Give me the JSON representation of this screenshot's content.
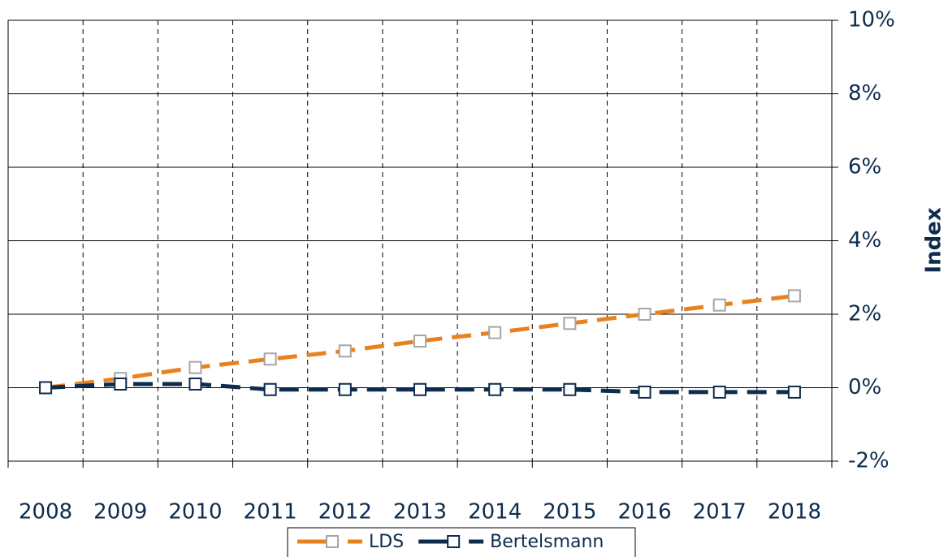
{
  "chart_data": {
    "type": "line",
    "y_label": "Index",
    "categories": [
      "2008",
      "2009",
      "2010",
      "2011",
      "2012",
      "2013",
      "2014",
      "2015",
      "2016",
      "2017",
      "2018"
    ],
    "series": [
      {
        "name": "LDS",
        "color": "#e8821e",
        "marker_color": "#a6a6a6",
        "values": [
          0,
          0.25,
          0.55,
          0.78,
          1.0,
          1.27,
          1.5,
          1.75,
          2.0,
          2.25,
          2.5
        ]
      },
      {
        "name": "Bertelsmann",
        "color": "#0d2c4e",
        "marker_color": "#0d2c4e",
        "values": [
          0,
          0.1,
          0.1,
          -0.05,
          -0.05,
          -0.05,
          -0.05,
          -0.05,
          -0.12,
          -0.12,
          -0.12
        ]
      }
    ],
    "ylim": [
      -2,
      10
    ],
    "yticks": [
      {
        "value": -2,
        "label": "-2%"
      },
      {
        "value": 0,
        "label": "0%"
      },
      {
        "value": 2,
        "label": "2%"
      },
      {
        "value": 4,
        "label": "4%"
      },
      {
        "value": 6,
        "label": "6%"
      },
      {
        "value": 8,
        "label": "8%"
      },
      {
        "value": 10,
        "label": "10%"
      }
    ],
    "grid": true,
    "legend": "bottom"
  }
}
